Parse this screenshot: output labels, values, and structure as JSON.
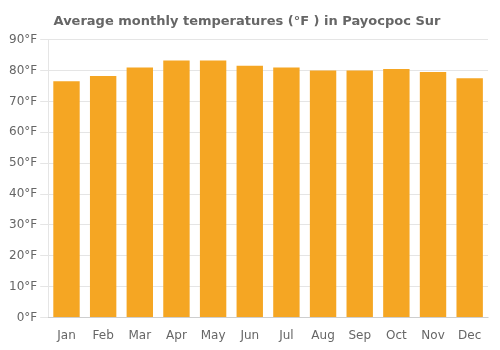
{
  "chart_data": {
    "type": "bar",
    "title": "Average monthly temperatures (°F ) in Payocpoc Sur",
    "categories": [
      "Jan",
      "Feb",
      "Mar",
      "Apr",
      "May",
      "Jun",
      "Jul",
      "Aug",
      "Sep",
      "Oct",
      "Nov",
      "Dec"
    ],
    "values": [
      76.5,
      78.2,
      81.0,
      83.2,
      83.2,
      81.5,
      81.0,
      80.0,
      80.0,
      80.5,
      79.5,
      77.5
    ],
    "color": "#F5A623",
    "ylim": [
      0,
      90
    ],
    "yticks": [
      {
        "value": 0,
        "label": "0°F"
      },
      {
        "value": 10,
        "label": "10°F"
      },
      {
        "value": 20,
        "label": "20°F"
      },
      {
        "value": 30,
        "label": "30°F"
      },
      {
        "value": 40,
        "label": "40°F"
      },
      {
        "value": 50,
        "label": "50°F"
      },
      {
        "value": 60,
        "label": "60°F"
      },
      {
        "value": 70,
        "label": "70°F"
      },
      {
        "value": 80,
        "label": "80°F"
      },
      {
        "value": 90,
        "label": "90°F"
      }
    ],
    "grid": true
  }
}
